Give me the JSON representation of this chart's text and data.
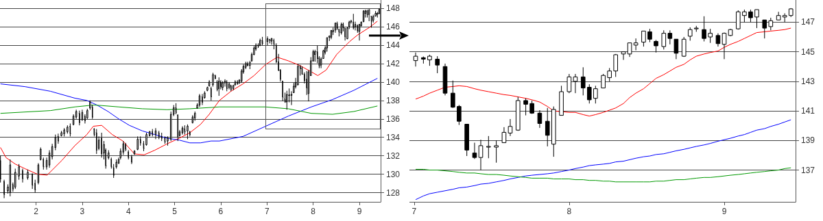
{
  "chart_data": [
    {
      "type": "candlestick",
      "xlim": [
        1.22,
        9.46
      ],
      "ylim": [
        127,
        148.9
      ],
      "xticks": [
        2,
        3,
        4,
        5,
        6,
        7,
        8,
        9
      ],
      "yticks": [
        128,
        130,
        132,
        134,
        136,
        138,
        140,
        142,
        144,
        146,
        148
      ],
      "grid": "y",
      "marker": "none",
      "x": [
        1.23,
        1.31,
        1.39,
        1.44,
        1.5,
        1.55,
        1.63,
        1.71,
        1.82,
        1.92,
        1.98,
        2.05,
        2.1,
        2.16,
        2.23,
        2.29,
        2.35,
        2.42,
        2.48,
        2.55,
        2.61,
        2.68,
        2.74,
        2.81,
        2.87,
        2.94,
        3.0,
        3.06,
        3.11,
        3.17,
        3.22,
        3.26,
        3.31,
        3.36,
        3.42,
        3.47,
        3.51,
        3.57,
        3.63,
        3.68,
        3.74,
        3.79,
        3.83,
        3.89,
        3.94,
        4.0,
        4.07,
        4.13,
        4.2,
        4.26,
        4.33,
        4.39,
        4.46,
        4.52,
        4.59,
        4.66,
        4.72,
        4.79,
        4.85,
        4.92,
        4.98,
        5.03,
        5.07,
        5.11,
        5.17,
        5.22,
        5.28,
        5.33,
        5.39,
        5.44,
        5.49,
        5.54,
        5.6,
        5.65,
        5.71,
        5.75,
        5.79,
        5.83,
        5.88,
        5.92,
        5.96,
        6.0,
        6.04,
        6.09,
        6.13,
        6.18,
        6.22,
        6.27,
        6.31,
        6.36,
        6.4,
        6.45,
        6.49,
        6.54,
        6.58,
        6.63,
        6.67,
        6.72,
        6.76,
        6.81,
        6.85,
        6.9,
        7.01,
        7.06,
        7.1,
        7.15,
        7.2,
        7.25,
        7.29,
        7.34,
        7.39,
        7.43,
        7.48,
        7.53,
        7.58,
        7.62,
        7.67,
        7.72,
        7.76,
        7.81,
        7.86,
        7.9,
        7.95,
        8.0,
        8.04,
        8.09,
        8.13,
        8.17,
        8.22,
        8.26,
        8.3,
        8.35,
        8.39,
        8.43,
        8.48,
        8.52,
        8.56,
        8.61,
        8.65,
        8.69,
        8.74,
        8.78,
        8.82,
        8.87,
        8.91,
        8.96,
        9.0,
        9.04,
        9.09,
        9.13,
        9.17,
        9.21,
        9.26,
        9.3,
        9.35,
        9.39,
        9.43
      ],
      "series": [
        {
          "type": "candlestick",
          "color": "#000000",
          "ohlc": [
            [
              131.5,
              132.0,
              129.1,
              129.5
            ],
            [
              129.2,
              129.4,
              127.4,
              127.8
            ],
            [
              128.2,
              128.9,
              127.9,
              128.6
            ],
            [
              128.0,
              131.6,
              127.6,
              131.0
            ],
            [
              128.9,
              129.1,
              128.1,
              128.4
            ],
            [
              128.6,
              130.6,
              128.4,
              130.2
            ],
            [
              129.8,
              131.1,
              129.4,
              130.8
            ],
            [
              130.4,
              130.6,
              129.1,
              129.5
            ],
            [
              129.6,
              130.5,
              129.4,
              130.2
            ],
            [
              130.0,
              130.1,
              128.4,
              128.8
            ],
            [
              129.0,
              129.4,
              128.0,
              128.3
            ],
            [
              129.1,
              131.2,
              128.9,
              131.0
            ],
            [
              131.6,
              132.9,
              131.5,
              132.7
            ],
            [
              131.6,
              131.8,
              130.5,
              130.8
            ],
            [
              130.8,
              131.8,
              130.5,
              131.5
            ],
            [
              131.0,
              132.6,
              130.7,
              132.3
            ],
            [
              131.9,
              133.3,
              131.6,
              133.0
            ],
            [
              132.9,
              134.3,
              132.6,
              134.0
            ],
            [
              134.1,
              134.4,
              133.3,
              133.6
            ],
            [
              134.2,
              134.7,
              134.1,
              134.5
            ],
            [
              134.4,
              135.0,
              134.1,
              134.8
            ],
            [
              134.6,
              135.3,
              134.4,
              135.1
            ],
            [
              135.2,
              135.5,
              134.1,
              134.4
            ],
            [
              135.4,
              136.5,
              135.3,
              136.3
            ],
            [
              136.2,
              137.0,
              136.0,
              136.8
            ],
            [
              136.6,
              136.9,
              135.3,
              135.6
            ],
            [
              135.9,
              137.0,
              135.8,
              136.7
            ],
            [
              136.3,
              136.5,
              135.5,
              135.8
            ],
            [
              136.1,
              137.1,
              136.0,
              136.9
            ],
            [
              137.2,
              138.0,
              137.0,
              137.8
            ],
            [
              137.3,
              137.5,
              136.0,
              136.2
            ],
            [
              134.9,
              135.0,
              134.1,
              134.3
            ],
            [
              134.5,
              134.9,
              132.2,
              132.6
            ],
            [
              132.8,
              134.1,
              132.6,
              133.7
            ],
            [
              133.9,
              134.5,
              131.8,
              132.2
            ],
            [
              132.3,
              133.6,
              131.6,
              133.2
            ],
            [
              132.6,
              132.8,
              130.6,
              130.9
            ],
            [
              131.8,
              132.6,
              131.6,
              132.3
            ],
            [
              131.6,
              131.8,
              130.6,
              130.8
            ],
            [
              130.7,
              131.1,
              129.6,
              129.9
            ],
            [
              130.8,
              131.6,
              130.6,
              131.3
            ],
            [
              131.2,
              131.8,
              131.1,
              131.6
            ],
            [
              131.8,
              132.8,
              131.6,
              132.5
            ],
            [
              132.4,
              133.6,
              132.1,
              133.3
            ],
            [
              133.2,
              133.4,
              132.5,
              132.7
            ],
            [
              132.4,
              132.6,
              131.6,
              131.8
            ],
            [
              131.9,
              132.1,
              131.1,
              131.3
            ],
            [
              132.2,
              132.6,
              132.1,
              132.5
            ],
            [
              132.7,
              134.1,
              132.6,
              133.8
            ],
            [
              133.8,
              134.1,
              133.1,
              133.4
            ],
            [
              133.3,
              133.6,
              132.5,
              132.8
            ],
            [
              133.2,
              134.5,
              133.1,
              134.3
            ],
            [
              134.2,
              134.7,
              134.1,
              134.6
            ],
            [
              134.6,
              134.9,
              134.1,
              134.3
            ],
            [
              134.3,
              135.0,
              133.8,
              134.7
            ],
            [
              134.5,
              134.7,
              133.8,
              134.0
            ],
            [
              134.1,
              134.5,
              133.6,
              133.9
            ],
            [
              133.9,
              134.1,
              133.3,
              133.5
            ],
            [
              133.6,
              134.1,
              133.1,
              133.9
            ],
            [
              133.8,
              136.8,
              133.6,
              136.5
            ],
            [
              136.5,
              137.5,
              136.3,
              137.2
            ],
            [
              137.2,
              137.7,
              136.5,
              136.7
            ],
            [
              136.4,
              136.5,
              133.6,
              134.0
            ],
            [
              134.2,
              134.8,
              134.1,
              134.6
            ],
            [
              134.5,
              135.2,
              134.3,
              135.0
            ],
            [
              134.9,
              135.3,
              134.3,
              134.6
            ],
            [
              134.7,
              135.4,
              133.8,
              135.2
            ],
            [
              134.6,
              134.7,
              134.1,
              134.3
            ],
            [
              135.6,
              136.4,
              135.5,
              136.2
            ],
            [
              136.1,
              136.8,
              135.8,
              136.6
            ],
            [
              137.2,
              137.7,
              137.1,
              137.5
            ],
            [
              137.5,
              138.7,
              137.3,
              138.5
            ],
            [
              138.4,
              138.7,
              137.5,
              137.8
            ],
            [
              138.3,
              139.0,
              138.2,
              138.8
            ],
            [
              139.1,
              139.5,
              139.0,
              139.4
            ],
            [
              139.6,
              140.2,
              139.5,
              140.0
            ],
            [
              139.3,
              139.5,
              138.0,
              138.4
            ],
            [
              139.7,
              141.0,
              139.5,
              140.8
            ],
            [
              140.7,
              140.8,
              140.3,
              140.4
            ],
            [
              140.0,
              140.2,
              139.0,
              139.2
            ],
            [
              139.3,
              140.5,
              138.5,
              140.1
            ],
            [
              140.0,
              140.2,
              139.2,
              139.5
            ],
            [
              139.4,
              140.1,
              139.1,
              139.9
            ],
            [
              139.9,
              140.3,
              139.5,
              140.1
            ],
            [
              140.0,
              140.2,
              139.0,
              139.3
            ],
            [
              139.4,
              140.0,
              139.2,
              139.8
            ],
            [
              139.6,
              139.7,
              139.0,
              139.2
            ],
            [
              139.3,
              139.7,
              139.1,
              139.6
            ],
            [
              139.7,
              140.2,
              139.6,
              140.0
            ],
            [
              140.0,
              140.2,
              139.7,
              139.8
            ],
            [
              139.9,
              140.3,
              139.8,
              140.2
            ],
            [
              140.1,
              141.4,
              139.9,
              141.2
            ],
            [
              141.1,
              141.9,
              140.9,
              141.7
            ],
            [
              141.6,
              142.2,
              141.4,
              142.0
            ],
            [
              142.0,
              142.2,
              141.7,
              141.8
            ],
            [
              141.8,
              142.3,
              141.4,
              142.1
            ],
            [
              142.3,
              143.2,
              142.2,
              143.0
            ],
            [
              143.0,
              143.9,
              142.9,
              143.7
            ],
            [
              143.6,
              144.2,
              143.4,
              144.0
            ],
            [
              144.0,
              144.2,
              143.7,
              143.9
            ],
            [
              144.0,
              144.7,
              143.9,
              144.5
            ],
            [
              144.5,
              144.9,
              144.0,
              144.2
            ],
            [
              144.4,
              144.95,
              144.0,
              144.7
            ],
            [
              144.6,
              144.68,
              144.2,
              144.5
            ],
            [
              144.45,
              144.8,
              144.05,
              144.7
            ],
            [
              144.5,
              144.7,
              143.55,
              144.1
            ],
            [
              144.0,
              144.2,
              142.05,
              142.2
            ],
            [
              142.2,
              143.05,
              141.2,
              141.25
            ],
            [
              141.3,
              141.4,
              140.05,
              140.3
            ],
            [
              140.1,
              140.1,
              137.95,
              138.35
            ],
            [
              138.15,
              138.85,
              137.75,
              137.85
            ],
            [
              137.85,
              139.05,
              137.0,
              138.65
            ],
            [
              138.55,
              139.3,
              137.8,
              138.6
            ],
            [
              138.55,
              139.0,
              137.5,
              138.65
            ],
            [
              138.85,
              139.9,
              138.85,
              139.55
            ],
            [
              139.5,
              140.45,
              139.3,
              139.95
            ],
            [
              139.7,
              141.95,
              139.65,
              141.7
            ],
            [
              141.7,
              141.85,
              140.7,
              141.45
            ],
            [
              141.5,
              141.7,
              140.8,
              140.85
            ],
            [
              140.85,
              141.05,
              139.85,
              140.15
            ],
            [
              140.3,
              141.2,
              138.6,
              139.35
            ],
            [
              138.75,
              141.3,
              137.9,
              141.1
            ],
            [
              140.7,
              142.7,
              140.7,
              142.3
            ],
            [
              142.3,
              143.5,
              142.2,
              143.3
            ],
            [
              143.0,
              143.5,
              142.2,
              143.3
            ],
            [
              143.3,
              143.95,
              142.05,
              142.55
            ],
            [
              142.6,
              142.8,
              141.5,
              141.75
            ],
            [
              141.85,
              142.7,
              141.5,
              142.5
            ],
            [
              142.55,
              143.5,
              142.55,
              143.4
            ],
            [
              143.25,
              143.9,
              143.0,
              143.7
            ],
            [
              143.7,
              144.85,
              143.3,
              144.8
            ],
            [
              144.85,
              145.0,
              144.45,
              145.0
            ],
            [
              144.85,
              145.6,
              144.65,
              145.6
            ],
            [
              145.45,
              145.9,
              145.1,
              145.6
            ],
            [
              145.65,
              146.4,
              145.35,
              146.4
            ],
            [
              146.35,
              146.55,
              145.65,
              145.85
            ],
            [
              145.7,
              145.8,
              144.95,
              145.4
            ],
            [
              145.35,
              146.45,
              145.15,
              146.25
            ],
            [
              146.25,
              146.45,
              145.5,
              145.9
            ],
            [
              145.85,
              145.85,
              144.5,
              144.9
            ],
            [
              144.7,
              146.0,
              144.65,
              145.85
            ],
            [
              146.05,
              146.65,
              145.75,
              146.5
            ],
            [
              146.55,
              146.75,
              146.35,
              146.6
            ],
            [
              146.5,
              147.4,
              145.7,
              145.9
            ],
            [
              146.0,
              146.55,
              145.6,
              146.25
            ],
            [
              146.1,
              146.25,
              145.35,
              145.55
            ],
            [
              145.5,
              146.3,
              144.5,
              146.25
            ],
            [
              146.1,
              146.55,
              146.05,
              146.5
            ],
            [
              146.55,
              147.8,
              146.5,
              147.7
            ],
            [
              147.45,
              147.85,
              147.0,
              147.7
            ],
            [
              147.7,
              147.85,
              147.0,
              147.3
            ],
            [
              147.35,
              147.85,
              146.6,
              147.85
            ],
            [
              147.15,
              147.15,
              145.9,
              146.6
            ],
            [
              146.7,
              147.3,
              146.45,
              147.1
            ],
            [
              147.15,
              147.7,
              147.15,
              147.45
            ],
            [
              147.35,
              147.6,
              147.0,
              147.45
            ],
            [
              147.45,
              147.95,
              147.35,
              147.9
            ]
          ]
        },
        {
          "type": "line",
          "color": "#ff0000",
          "x": [
            1.23,
            1.35,
            1.55,
            1.76,
            2.03,
            2.24,
            2.56,
            2.84,
            3.1,
            3.24,
            3.42,
            3.65,
            3.88,
            4.13,
            4.34,
            4.57,
            4.84,
            5.1,
            5.33,
            5.56,
            5.75,
            5.97,
            6.22,
            6.48,
            6.72,
            6.97,
            7.22,
            7.46,
            7.71,
            7.96,
            8.1,
            8.28,
            8.51,
            8.79,
            8.96,
            9.21,
            9.39
          ],
          "values": [
            132.9,
            131.8,
            131.1,
            130.6,
            130.0,
            129.9,
            131.5,
            133.1,
            134.3,
            135.2,
            135.3,
            134.3,
            133.6,
            132.2,
            132.1,
            132.6,
            133.3,
            133.9,
            134.5,
            135.4,
            136.5,
            138.0,
            139.0,
            139.8,
            140.7,
            141.9,
            142.7,
            142.3,
            141.8,
            141.1,
            140.7,
            141.3,
            143.0,
            144.4,
            145.1,
            145.9,
            146.6
          ]
        },
        {
          "type": "line",
          "color": "#0000ff",
          "x": [
            1.23,
            1.76,
            2.31,
            2.84,
            3.1,
            3.32,
            3.56,
            3.79,
            4.02,
            4.3,
            4.57,
            4.84,
            5.1,
            5.33,
            5.56,
            5.79,
            5.97,
            6.48,
            6.97,
            7.46,
            7.96,
            8.42,
            8.88,
            9.39
          ],
          "values": [
            139.8,
            139.5,
            139.0,
            138.25,
            138.0,
            137.5,
            136.8,
            136.0,
            135.3,
            134.7,
            134.3,
            133.9,
            133.7,
            133.4,
            133.4,
            133.6,
            133.6,
            134.1,
            135.2,
            136.3,
            137.3,
            138.1,
            139.1,
            140.4
          ]
        },
        {
          "type": "line",
          "color": "#009900",
          "x": [
            1.23,
            2.31,
            2.84,
            3.24,
            3.42,
            3.79,
            4.3,
            4.84,
            5.33,
            5.97,
            6.97,
            7.46,
            7.96,
            8.42,
            8.88,
            9.39
          ],
          "values": [
            136.6,
            136.9,
            137.3,
            137.5,
            137.45,
            137.3,
            137.1,
            137.0,
            137.1,
            137.3,
            137.3,
            137.1,
            136.6,
            136.5,
            136.8,
            137.4
          ]
        }
      ]
    },
    {
      "type": "candlestick",
      "xlim": [
        6.97,
        9.46
      ],
      "ylim": [
        134.85,
        148.5
      ],
      "xticks": [
        7,
        8,
        9
      ],
      "yticks": [
        137,
        139,
        141,
        143,
        145,
        147
      ],
      "grid": "y",
      "marker": "none",
      "x": [
        7.01,
        7.06,
        7.1,
        7.15,
        7.2,
        7.25,
        7.29,
        7.34,
        7.39,
        7.43,
        7.48,
        7.53,
        7.58,
        7.62,
        7.67,
        7.72,
        7.76,
        7.81,
        7.86,
        7.9,
        7.95,
        8.0,
        8.04,
        8.09,
        8.13,
        8.17,
        8.22,
        8.26,
        8.3,
        8.35,
        8.39,
        8.43,
        8.48,
        8.52,
        8.56,
        8.61,
        8.65,
        8.69,
        8.74,
        8.78,
        8.82,
        8.87,
        8.91,
        8.96,
        9.0,
        9.04,
        9.09,
        9.13,
        9.17,
        9.21,
        9.26,
        9.3,
        9.35,
        9.39,
        9.43
      ],
      "series": [
        {
          "type": "candlestick",
          "colors": [
            "#ffffff",
            "#000000",
            "#ffffff",
            "#000000",
            "#000000",
            "#000000",
            "#000000",
            "#000000",
            "#000000",
            "#ffffff",
            "#ffffff",
            "#ffffff",
            "#ffffff",
            "#ffffff",
            "#ffffff",
            "#000000",
            "#000000",
            "#000000",
            "#000000",
            "#ffffff",
            "#ffffff",
            "#ffffff",
            "#ffffff",
            "#000000",
            "#000000",
            "#ffffff",
            "#ffffff",
            "#ffffff",
            "#ffffff",
            "#ffffff",
            "#ffffff",
            "#ffffff",
            "#ffffff",
            "#000000",
            "#000000",
            "#ffffff",
            "#000000",
            "#000000",
            "#ffffff",
            "#ffffff",
            "#ffffff",
            "#000000",
            "#ffffff",
            "#000000",
            "#ffffff",
            "#ffffff",
            "#ffffff",
            "#ffffff",
            "#000000",
            "#ffffff",
            "#000000",
            "#ffffff",
            "#ffffff",
            "#ffffff",
            "#ffffff"
          ],
          "ohlc": [
            [
              144.4,
              144.95,
              144.0,
              144.7
            ],
            [
              144.6,
              144.68,
              144.2,
              144.5
            ],
            [
              144.45,
              144.8,
              144.05,
              144.7
            ],
            [
              144.5,
              144.7,
              143.55,
              144.1
            ],
            [
              144.0,
              144.2,
              142.05,
              142.2
            ],
            [
              142.2,
              143.05,
              141.2,
              141.25
            ],
            [
              141.3,
              141.4,
              140.05,
              140.3
            ],
            [
              140.1,
              140.1,
              137.95,
              138.35
            ],
            [
              138.15,
              138.85,
              137.75,
              137.85
            ],
            [
              137.85,
              139.05,
              137.0,
              138.65
            ],
            [
              138.55,
              139.3,
              137.8,
              138.6
            ],
            [
              138.55,
              139.0,
              137.5,
              138.65
            ],
            [
              138.85,
              139.9,
              138.85,
              139.55
            ],
            [
              139.5,
              140.45,
              139.3,
              139.95
            ],
            [
              139.7,
              141.95,
              139.65,
              141.7
            ],
            [
              141.7,
              141.85,
              140.7,
              141.45
            ],
            [
              141.5,
              141.7,
              140.8,
              140.85
            ],
            [
              140.85,
              141.05,
              139.85,
              140.15
            ],
            [
              140.3,
              141.2,
              138.6,
              139.35
            ],
            [
              138.75,
              141.3,
              137.9,
              141.1
            ],
            [
              140.7,
              142.7,
              140.7,
              142.3
            ],
            [
              142.3,
              143.5,
              142.2,
              143.3
            ],
            [
              143.0,
              143.5,
              142.2,
              143.3
            ],
            [
              143.3,
              143.95,
              142.05,
              142.55
            ],
            [
              142.6,
              142.8,
              141.5,
              141.75
            ],
            [
              141.85,
              142.7,
              141.5,
              142.5
            ],
            [
              142.55,
              143.5,
              142.55,
              143.4
            ],
            [
              143.25,
              143.9,
              143.0,
              143.7
            ],
            [
              143.7,
              144.85,
              143.3,
              144.8
            ],
            [
              144.85,
              145.0,
              144.45,
              145.0
            ],
            [
              144.85,
              145.6,
              144.65,
              145.6
            ],
            [
              145.45,
              145.9,
              145.1,
              145.6
            ],
            [
              145.65,
              146.4,
              145.35,
              146.4
            ],
            [
              146.35,
              146.55,
              145.65,
              145.85
            ],
            [
              145.7,
              145.8,
              144.95,
              145.4
            ],
            [
              145.35,
              146.45,
              145.15,
              146.25
            ],
            [
              146.25,
              146.45,
              145.5,
              145.9
            ],
            [
              145.85,
              145.85,
              144.5,
              144.9
            ],
            [
              144.7,
              146.0,
              144.65,
              145.85
            ],
            [
              146.05,
              146.65,
              145.75,
              146.5
            ],
            [
              146.55,
              146.75,
              146.35,
              146.6
            ],
            [
              146.5,
              147.4,
              145.7,
              145.9
            ],
            [
              146.0,
              146.55,
              145.6,
              146.25
            ],
            [
              146.1,
              146.25,
              145.35,
              145.55
            ],
            [
              145.5,
              146.3,
              144.5,
              146.25
            ],
            [
              146.1,
              146.55,
              146.05,
              146.5
            ],
            [
              146.55,
              147.8,
              146.5,
              147.7
            ],
            [
              147.45,
              147.85,
              147.0,
              147.7
            ],
            [
              147.7,
              147.85,
              147.0,
              147.3
            ],
            [
              147.35,
              147.85,
              146.6,
              147.85
            ],
            [
              147.15,
              147.15,
              145.9,
              146.6
            ],
            [
              146.7,
              147.3,
              146.45,
              147.1
            ],
            [
              147.15,
              147.7,
              147.15,
              147.45
            ],
            [
              147.35,
              147.6,
              147.0,
              147.45
            ],
            [
              147.45,
              147.95,
              147.35,
              147.9
            ]
          ]
        },
        {
          "type": "line",
          "color": "#ff0000",
          "values": [
            141.8,
            142.0,
            142.2,
            142.4,
            142.6,
            142.65,
            142.7,
            142.65,
            142.5,
            142.4,
            142.3,
            142.2,
            142.1,
            142.05,
            141.95,
            141.85,
            141.75,
            141.6,
            141.3,
            141.0,
            140.95,
            140.9,
            140.9,
            140.75,
            140.65,
            140.75,
            140.9,
            141.05,
            141.2,
            141.5,
            141.9,
            142.2,
            142.5,
            142.85,
            143.2,
            143.45,
            143.7,
            143.95,
            144.15,
            144.45,
            144.7,
            144.85,
            144.95,
            145.05,
            145.3,
            145.5,
            145.7,
            145.9,
            146.1,
            146.3,
            146.35,
            146.4,
            146.45,
            146.5,
            146.6
          ]
        },
        {
          "type": "line",
          "color": "#0000ff",
          "values": [
            135.0,
            135.25,
            135.4,
            135.5,
            135.6,
            135.7,
            135.8,
            135.85,
            135.95,
            136.05,
            136.1,
            136.2,
            136.3,
            136.4,
            136.5,
            136.6,
            136.65,
            136.7,
            136.75,
            136.8,
            136.9,
            137.0,
            137.1,
            137.2,
            137.3,
            137.35,
            137.4,
            137.45,
            137.55,
            137.6,
            137.7,
            137.8,
            137.9,
            137.95,
            138.05,
            138.1,
            138.2,
            138.3,
            138.4,
            138.5,
            138.6,
            138.7,
            138.8,
            138.95,
            139.05,
            139.15,
            139.3,
            139.4,
            139.55,
            139.7,
            139.8,
            139.95,
            140.1,
            140.25,
            140.4
          ]
        },
        {
          "type": "line",
          "color": "#009900",
          "values": [
            137.05,
            137.05,
            137.0,
            137.0,
            136.95,
            136.9,
            136.85,
            136.8,
            136.8,
            136.75,
            136.7,
            136.7,
            136.65,
            136.6,
            136.55,
            136.5,
            136.45,
            136.45,
            136.45,
            136.4,
            136.4,
            136.4,
            136.35,
            136.35,
            136.3,
            136.3,
            136.25,
            136.25,
            136.2,
            136.2,
            136.2,
            136.2,
            136.2,
            136.2,
            136.25,
            136.25,
            136.3,
            136.35,
            136.35,
            136.4,
            136.45,
            136.5,
            136.5,
            136.55,
            136.6,
            136.65,
            136.7,
            136.75,
            136.8,
            136.85,
            136.9,
            136.95,
            137.0,
            137.1,
            137.15
          ]
        }
      ]
    }
  ]
}
